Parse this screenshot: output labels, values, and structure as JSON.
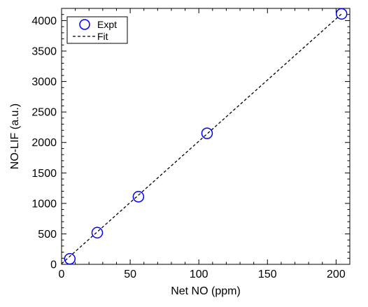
{
  "chart_data": {
    "type": "scatter",
    "title": "",
    "xlabel": "Net NO (ppm)",
    "ylabel": "NO-LIF (a.u.)",
    "xlim": [
      0,
      210
    ],
    "ylim": [
      0,
      4200
    ],
    "xticks": [
      0,
      50,
      100,
      150,
      200
    ],
    "yticks": [
      0,
      500,
      1000,
      1500,
      2000,
      2500,
      3000,
      3500,
      4000
    ],
    "grid": false,
    "legend_position": "top-left",
    "series": [
      {
        "name": "Expt",
        "kind": "markers",
        "marker": "open-circle",
        "color": "#0000ff",
        "x": [
          6,
          26,
          56,
          106,
          204
        ],
        "y": [
          90,
          520,
          1110,
          2150,
          4110
        ]
      },
      {
        "name": "Fit",
        "kind": "line",
        "style": "dashed",
        "color": "#000000",
        "x": [
          0,
          204
        ],
        "y": [
          10,
          4110
        ]
      }
    ]
  }
}
